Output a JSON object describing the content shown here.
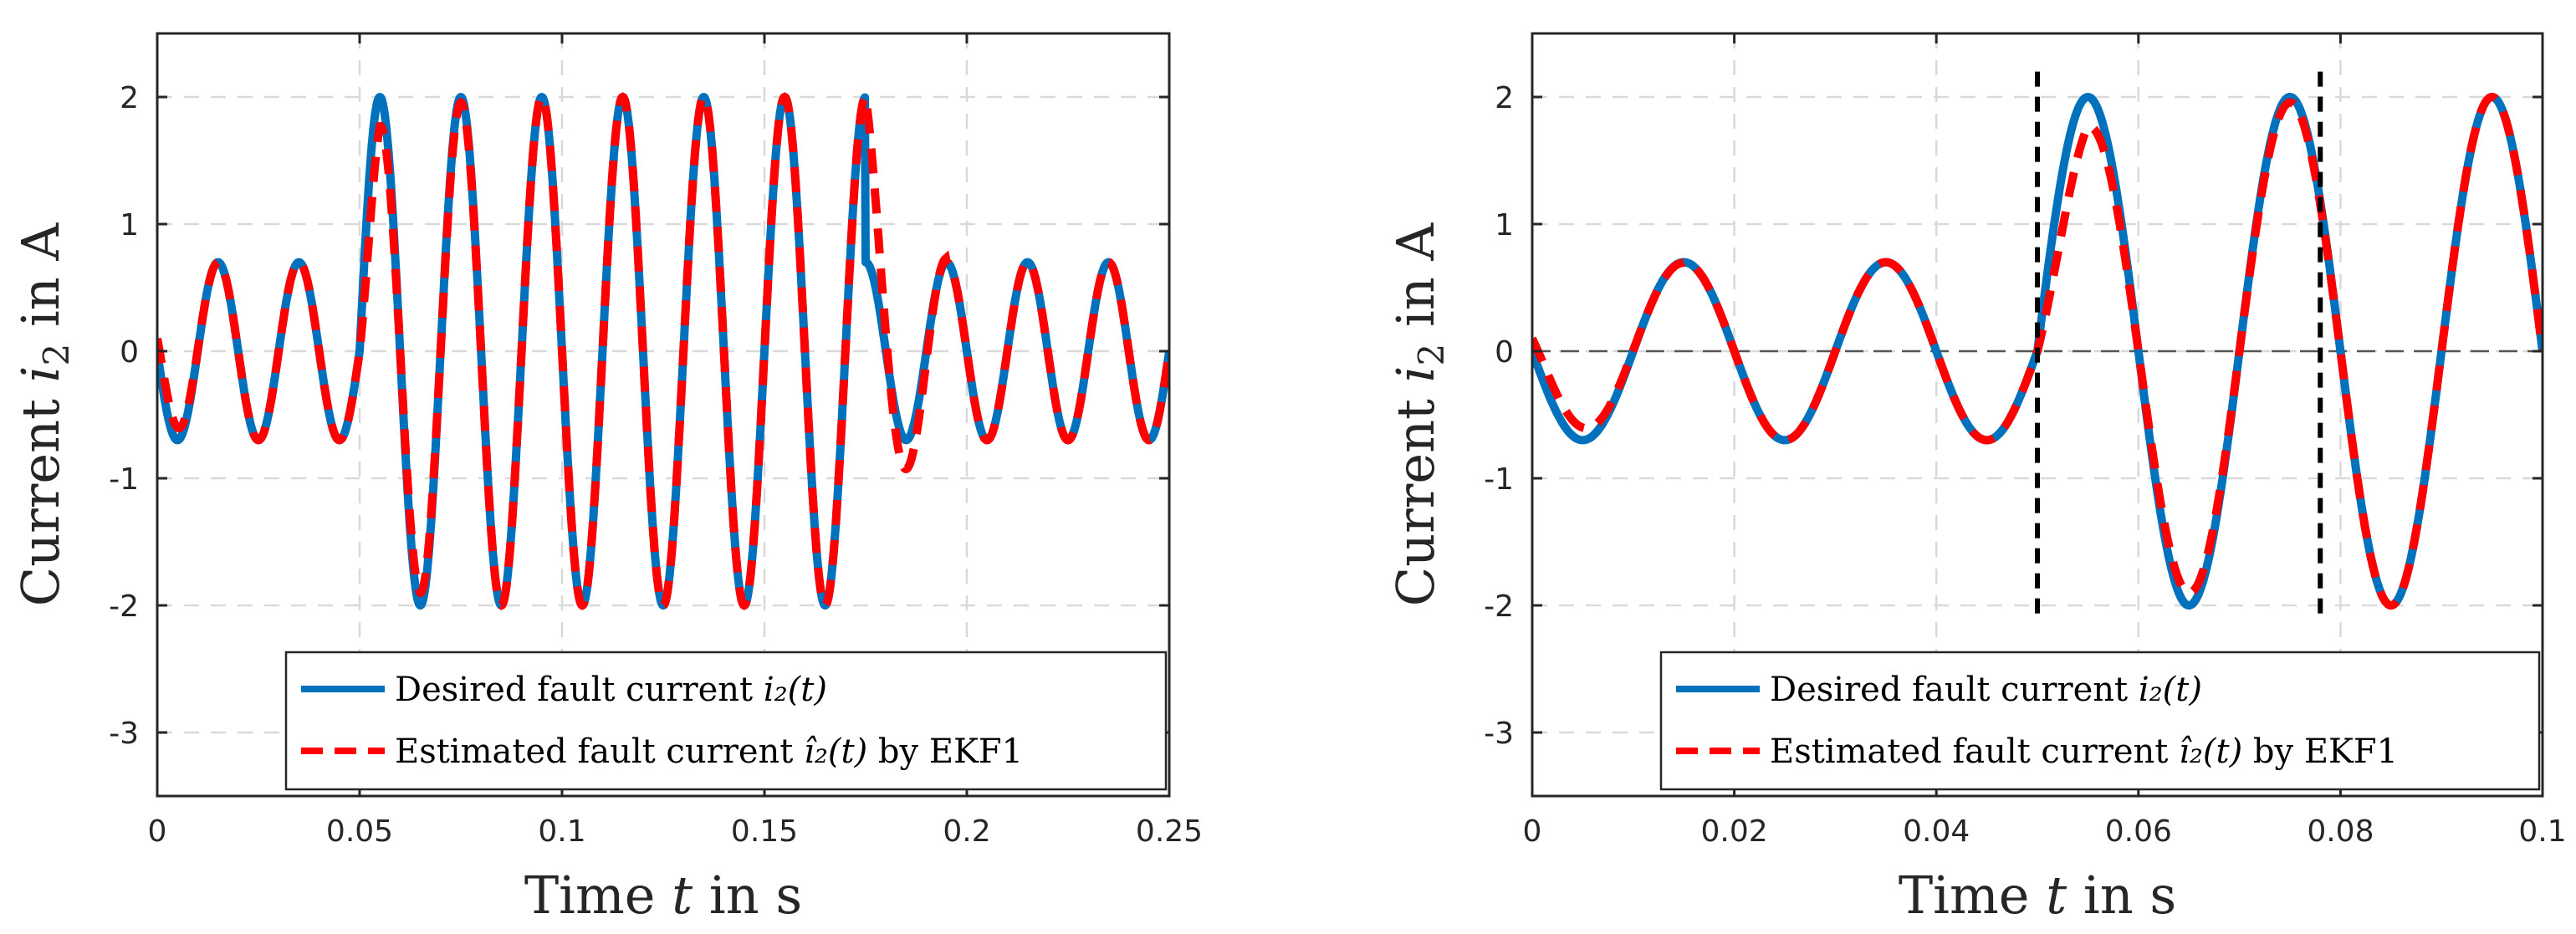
{
  "chart_data": [
    {
      "type": "line",
      "xlabel_prefix": "Time",
      "xlabel_var": "t",
      "xlabel_suffix": "in s",
      "ylabel_prefix": "Current",
      "ylabel_var": "i",
      "ylabel_sub": "2",
      "ylabel_suffix": "in A",
      "xlim": [
        0,
        0.25
      ],
      "ylim": [
        -3.5,
        2.5
      ],
      "xticks": [
        0,
        0.05,
        0.1,
        0.15,
        0.2,
        0.25
      ],
      "xtick_labels": [
        "0",
        "0.05",
        "0.1",
        "0.15",
        "0.2",
        "0.25"
      ],
      "yticks": [
        -3,
        -2,
        -1,
        0,
        1,
        2
      ],
      "ytick_labels": [
        "-3",
        "-2",
        "-1",
        "0",
        "1",
        "2"
      ],
      "grid": true,
      "legend_position": "bottom-right",
      "signal": {
        "frequency_hz": 50,
        "normal_amplitude": 0.7,
        "fault_amplitude": 2.0,
        "fault_start_s": 0.05,
        "fault_end_s": 0.175
      },
      "series": [
        {
          "name": "Desired fault current",
          "math": "i₂(t)",
          "color": "#0072bd",
          "style": "solid"
        },
        {
          "name": "Estimated fault current",
          "math": "î₂(t)",
          "suffix": "by EKF1",
          "color": "#ff0000",
          "style": "dashed"
        }
      ]
    },
    {
      "type": "line",
      "xlabel_prefix": "Time",
      "xlabel_var": "t",
      "xlabel_suffix": "in s",
      "ylabel_prefix": "Current",
      "ylabel_var": "i",
      "ylabel_sub": "2",
      "ylabel_suffix": "in A",
      "xlim": [
        0,
        0.1
      ],
      "ylim": [
        -3.5,
        2.5
      ],
      "xticks": [
        0,
        0.02,
        0.04,
        0.06,
        0.08,
        0.1
      ],
      "xtick_labels": [
        "0",
        "0.02",
        "0.04",
        "0.06",
        "0.08",
        "0.1"
      ],
      "yticks": [
        -3,
        -2,
        -1,
        0,
        1,
        2
      ],
      "ytick_labels": [
        "-3",
        "-2",
        "-1",
        "0",
        "1",
        "2"
      ],
      "grid": true,
      "zero_line": true,
      "vertical_markers_s": [
        0.05,
        0.078
      ],
      "legend_position": "bottom-right",
      "signal": {
        "frequency_hz": 50,
        "normal_amplitude": 0.7,
        "fault_amplitude": 2.0,
        "fault_start_s": 0.05
      },
      "series": [
        {
          "name": "Desired fault current",
          "math": "i₂(t)",
          "color": "#0072bd",
          "style": "solid"
        },
        {
          "name": "Estimated fault current",
          "math": "î₂(t)",
          "suffix": "by EKF1",
          "color": "#ff0000",
          "style": "dashed"
        }
      ]
    }
  ]
}
